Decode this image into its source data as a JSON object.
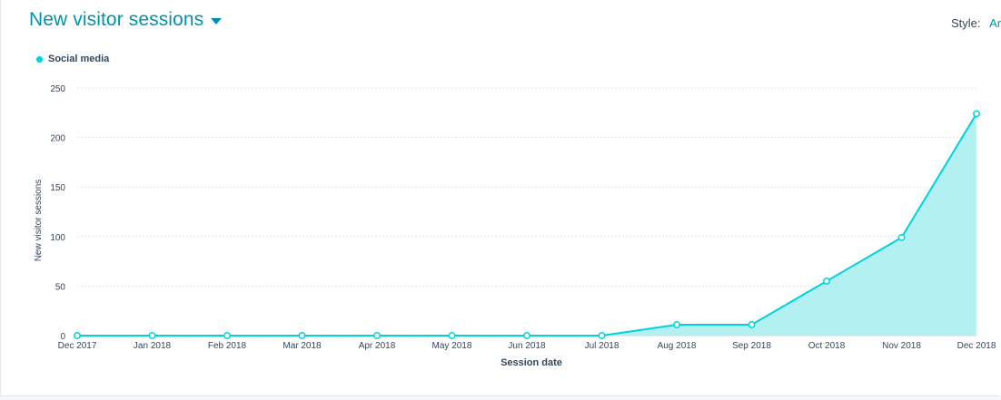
{
  "header": {
    "title": "New visitor sessions",
    "style_label": "Style:",
    "style_value": "Are"
  },
  "colors": {
    "accent": "#0091ae",
    "series": "#00d2dc",
    "fill": "#b2f0f2",
    "grid": "#dfe3eb",
    "text": "#33475b"
  },
  "chart_data": {
    "type": "area",
    "x": [
      "Dec 2017",
      "Jan 2018",
      "Feb 2018",
      "Mar 2018",
      "Apr 2018",
      "May 2018",
      "Jun 2018",
      "Jul 2018",
      "Aug 2018",
      "Sep 2018",
      "Oct 2018",
      "Nov 2018",
      "Dec 2018"
    ],
    "series": [
      {
        "name": "Social media",
        "values": [
          0,
          0,
          0,
          0,
          0,
          0,
          0,
          0,
          11,
          11,
          55,
          99,
          224
        ]
      }
    ],
    "xlabel": "Session date",
    "ylabel": "New visitor sessions",
    "ylim": [
      0,
      250
    ],
    "yticks": [
      0,
      50,
      100,
      150,
      200,
      250
    ],
    "grid": true,
    "legend": "top-left"
  }
}
